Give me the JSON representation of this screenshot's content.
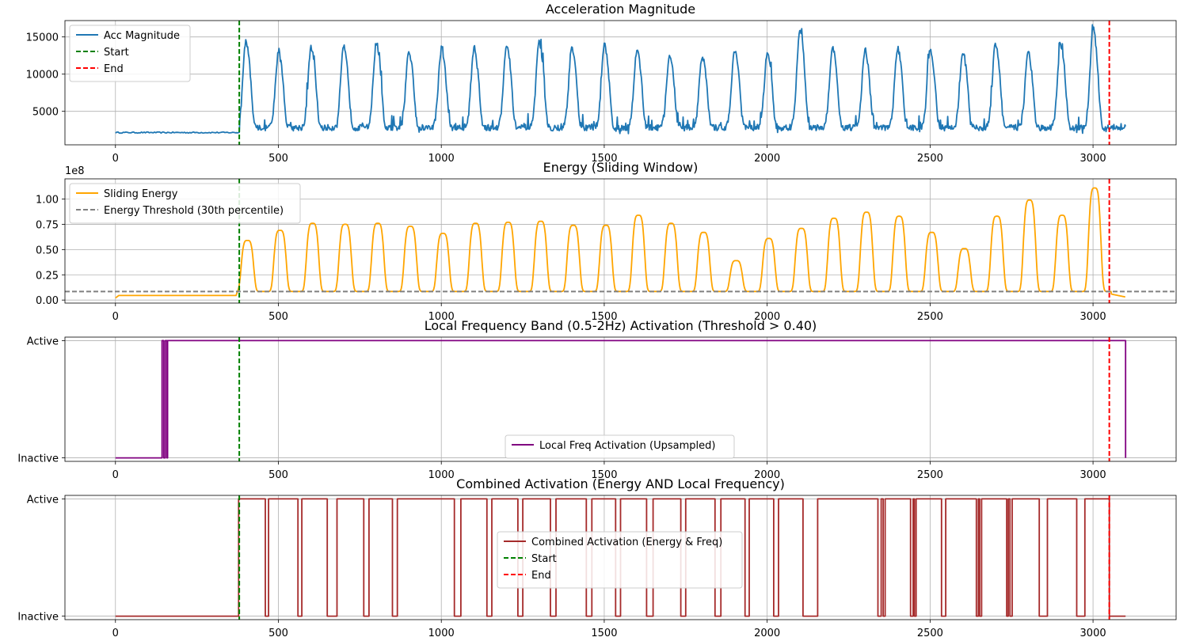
{
  "chart_data": [
    {
      "type": "line",
      "title": "Acceleration Magnitude",
      "xlim": [
        -155,
        3255
      ],
      "ylim": [
        500,
        17200
      ],
      "xticks": [
        0,
        500,
        1000,
        1500,
        2000,
        2500,
        3000
      ],
      "yticks": [
        5000,
        10000,
        15000
      ],
      "ytick_labels": [
        "5000",
        "10000",
        "15000"
      ],
      "grid": true,
      "legend_position": "upper-left",
      "series": [
        {
          "name": "Acc Magnitude",
          "color": "#1f77b4",
          "style": "solid",
          "baseline": {
            "x_start": 0,
            "x_end": 380,
            "value": 2150
          },
          "cycles": {
            "period": 100,
            "first_peak": 400,
            "last_peak": 3035,
            "peak_width": 12,
            "floor": 2800,
            "noise": 600
          },
          "peaks": [
            14100,
            12700,
            13300,
            13300,
            13900,
            12800,
            13200,
            13200,
            13700,
            14000,
            13200,
            13600,
            13000,
            12200,
            12200,
            13100,
            12400,
            15800,
            13300,
            13000,
            13200,
            13100,
            12700,
            13800,
            12800,
            13600,
            15700,
            13000,
            16200
          ],
          "x_end": 3100,
          "tail_value": 2900
        },
        {
          "name": "Start",
          "color": "#008000",
          "style": "dashed",
          "vline": 380
        },
        {
          "name": "End",
          "color": "#ff0000",
          "style": "dashed",
          "vline": 3050
        }
      ]
    },
    {
      "type": "line",
      "title": "Energy (Sliding Window)",
      "offset_label": "1e8",
      "xlim": [
        -155,
        3255
      ],
      "ylim": [
        -0.03,
        1.2
      ],
      "xticks": [
        0,
        500,
        1000,
        1500,
        2000,
        2500,
        3000
      ],
      "yticks": [
        0.0,
        0.25,
        0.5,
        0.75,
        1.0
      ],
      "ytick_labels": [
        "0.00",
        "0.25",
        "0.50",
        "0.75",
        "1.00"
      ],
      "grid": true,
      "legend_position": "upper-left",
      "series": [
        {
          "name": "Sliding Energy",
          "color": "#ffa500",
          "style": "solid",
          "baseline": {
            "x_start": 0,
            "x_end": 375,
            "value": 0.045
          },
          "cycles": {
            "period": 100,
            "first_peak": 405,
            "last_peak": 3015,
            "plateau_width": 42,
            "floor": 0.085
          },
          "peaks": [
            0.59,
            0.69,
            0.76,
            0.75,
            0.76,
            0.73,
            0.66,
            0.76,
            0.77,
            0.78,
            0.74,
            0.74,
            0.84,
            0.76,
            0.67,
            0.39,
            0.61,
            0.71,
            0.81,
            0.87,
            0.83,
            0.67,
            0.51,
            0.83,
            0.99,
            0.84,
            1.11
          ],
          "x_end": 3100,
          "tail_value": 0.03
        },
        {
          "name": "Energy Threshold (30th percentile)",
          "color": "#808080",
          "style": "dashed",
          "hline": 0.085
        },
        {
          "name": "",
          "color": "#008000",
          "style": "dashed",
          "vline": 380
        },
        {
          "name": "",
          "color": "#ff0000",
          "style": "dashed",
          "vline": 3050
        }
      ]
    },
    {
      "type": "line",
      "title": "Local Frequency Band (0.5-2Hz) Activation (Threshold > 0.40)",
      "xlim": [
        -155,
        3255
      ],
      "ylim": [
        -0.03,
        1.03
      ],
      "xticks": [
        0,
        500,
        1000,
        1500,
        2000,
        2500,
        3000
      ],
      "yticks": [
        0,
        1
      ],
      "ytick_labels": [
        "Inactive",
        "Active"
      ],
      "grid": true,
      "legend_position": "lower-center",
      "series": [
        {
          "name": "Local Freq Activation (Upsampled)",
          "color": "#800080",
          "style": "step",
          "points": [
            [
              0,
              0
            ],
            [
              143,
              0
            ],
            [
              143,
              1
            ],
            [
              148,
              1
            ],
            [
              148,
              0
            ],
            [
              153,
              0
            ],
            [
              153,
              1
            ],
            [
              158,
              1
            ],
            [
              158,
              0
            ],
            [
              160,
              0
            ],
            [
              160,
              1
            ],
            [
              3100,
              1
            ],
            [
              3100,
              0
            ]
          ]
        },
        {
          "name": "",
          "color": "#008000",
          "style": "dashed",
          "vline": 380
        },
        {
          "name": "",
          "color": "#ff0000",
          "style": "dashed",
          "vline": 3050
        }
      ]
    },
    {
      "type": "line",
      "title": "Combined Activation (Energy AND Local Frequency)",
      "xlim": [
        -155,
        3255
      ],
      "ylim": [
        -0.03,
        1.03
      ],
      "xticks": [
        0,
        500,
        1000,
        1500,
        2000,
        2500,
        3000
      ],
      "yticks": [
        0,
        1
      ],
      "ytick_labels": [
        "Inactive",
        "Active"
      ],
      "grid": true,
      "legend_position": "center",
      "series": [
        {
          "name": "Combined Activation (Energy & Freq)",
          "color": "#a52a2a",
          "style": "step",
          "active_intervals": [
            [
              378,
              460
            ],
            [
              470,
              560
            ],
            [
              572,
              650
            ],
            [
              680,
              762
            ],
            [
              778,
              850
            ],
            [
              865,
              1040
            ],
            [
              1060,
              1140
            ],
            [
              1155,
              1235
            ],
            [
              1250,
              1335
            ],
            [
              1352,
              1445
            ],
            [
              1462,
              1535
            ],
            [
              1550,
              1630
            ],
            [
              1650,
              1735
            ],
            [
              1750,
              1840
            ],
            [
              1858,
              1932
            ],
            [
              1945,
              2020
            ],
            [
              2035,
              2110
            ],
            [
              2155,
              2340
            ],
            [
              2350,
              2356
            ],
            [
              2362,
              2440
            ],
            [
              2448,
              2452
            ],
            [
              2457,
              2535
            ],
            [
              2548,
              2642
            ],
            [
              2648,
              2652
            ],
            [
              2658,
              2735
            ],
            [
              2740,
              2745
            ],
            [
              2752,
              2835
            ],
            [
              2860,
              2950
            ],
            [
              2975,
              3050
            ]
          ],
          "x_end": 3100
        },
        {
          "name": "Start",
          "color": "#008000",
          "style": "dashed",
          "vline": 380
        },
        {
          "name": "End",
          "color": "#ff0000",
          "style": "dashed",
          "vline": 3050
        }
      ]
    }
  ]
}
